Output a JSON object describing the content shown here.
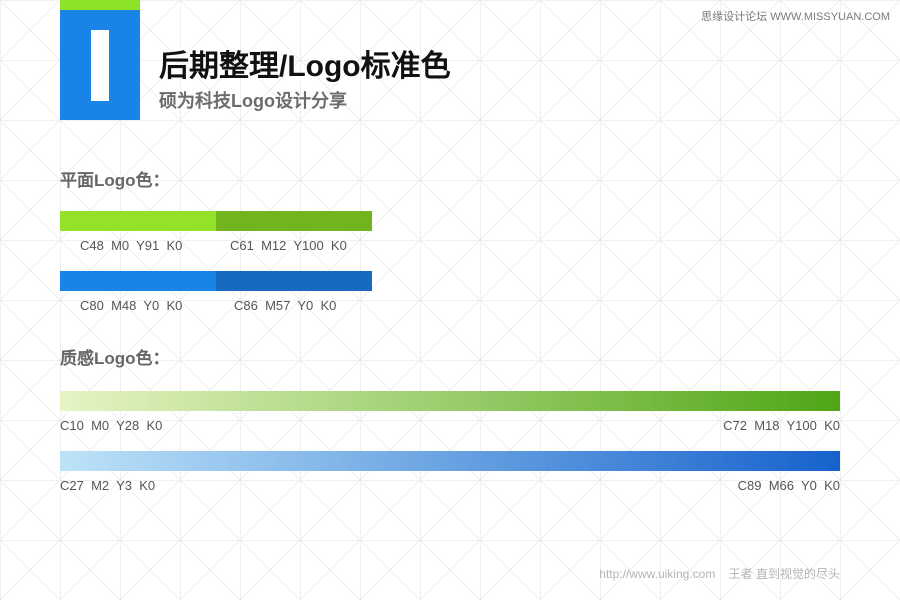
{
  "watermark": "思缘设计论坛 WWW.MISSYUAN.COM",
  "header": {
    "title": "后期整理/Logo标准色",
    "subtitle": "硕为科技Logo设计分享"
  },
  "flat_section": {
    "heading": "平面Logo色：",
    "green_swatches": [
      {
        "color": "#93e229",
        "label": "C48  M0  Y91  K0"
      },
      {
        "color": "#72b41e",
        "label": "C61  M12  Y100  K0"
      }
    ],
    "blue_swatches": [
      {
        "color": "#1a84e6",
        "label": "C80  M48  Y0  K0"
      },
      {
        "color": "#176ac0",
        "label": "C86  M57  Y0  K0"
      }
    ]
  },
  "texture_section": {
    "heading": "质感Logo色：",
    "green_gradient": {
      "start_color": "#e6f4c4",
      "end_color": "#4fa615",
      "start_label": "C10  M0  Y28  K0",
      "end_label": "C72  M18  Y100  K0"
    },
    "blue_gradient": {
      "start_color": "#bde3f8",
      "end_color": "#1662cc",
      "start_label": "C27  M2  Y3  K0",
      "end_label": "C89  M66  Y0  K0"
    }
  },
  "footer": {
    "url": "http://www.uiking.com",
    "author": "王者 直到视觉的尽头"
  }
}
